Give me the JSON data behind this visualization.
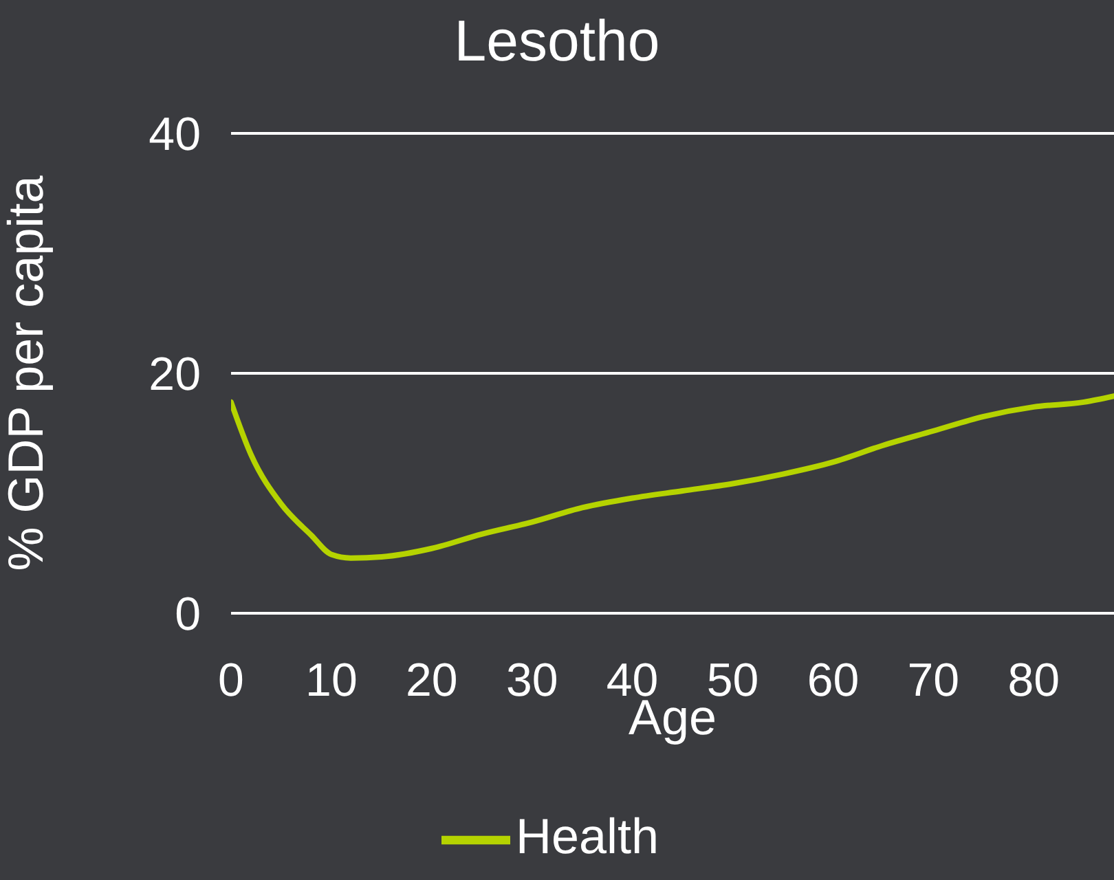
{
  "chart_data": {
    "type": "line",
    "title": "Lesotho",
    "xlabel": "Age",
    "ylabel": "% GDP per capita",
    "x": [
      0,
      2,
      5,
      8,
      10,
      12,
      15,
      20,
      25,
      30,
      35,
      40,
      45,
      50,
      55,
      60,
      65,
      70,
      75,
      80,
      85,
      88
    ],
    "series": [
      {
        "name": "Health",
        "color": "#b5d300",
        "values": [
          17.6,
          13.2,
          9.1,
          6.5,
          4.9,
          4.6,
          4.7,
          5.4,
          6.6,
          7.6,
          8.8,
          9.6,
          10.2,
          10.8,
          11.6,
          12.6,
          14.0,
          15.2,
          16.4,
          17.2,
          17.6,
          18.1
        ]
      }
    ],
    "xlim": [
      0,
      88
    ],
    "xticks": [
      0,
      10,
      20,
      30,
      40,
      50,
      60,
      70,
      80
    ],
    "ylim": [
      0,
      40
    ],
    "yticks": [
      0,
      20,
      40
    ],
    "grid": "y",
    "legend": "bottom",
    "marker": "none",
    "line_style": "solid"
  }
}
